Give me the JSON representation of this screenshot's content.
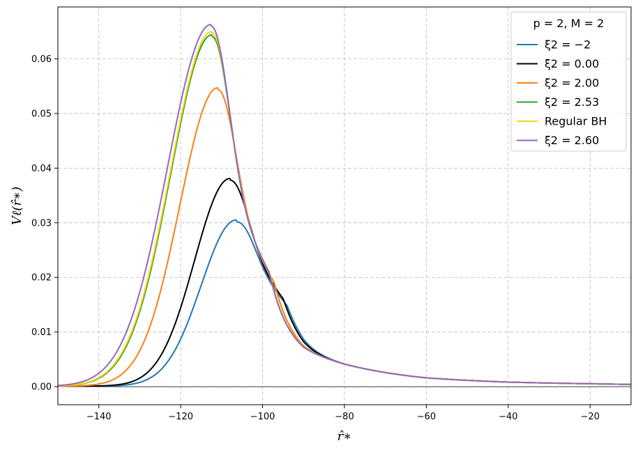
{
  "chart_data": {
    "type": "line",
    "xlabel": "r̂∗",
    "ylabel": "Vℓ(r̂∗)",
    "xlim": [
      -150,
      -10
    ],
    "ylim": [
      -0.0033,
      0.0695
    ],
    "x_ticks": [
      -140,
      -120,
      -100,
      -80,
      -60,
      -40,
      -20
    ],
    "x_tick_labels": [
      "−140",
      "−120",
      "−100",
      "−80",
      "−60",
      "−40",
      "−20"
    ],
    "y_ticks": [
      0.0,
      0.01,
      0.02,
      0.03,
      0.04,
      0.05,
      0.06
    ],
    "y_tick_labels": [
      "0.00",
      "0.01",
      "0.02",
      "0.03",
      "0.04",
      "0.05",
      "0.06"
    ],
    "grid": true,
    "horizontal_reference_line": 0.0,
    "legend": {
      "placement": "top-right",
      "title": "p = 2, M = 2"
    },
    "series": [
      {
        "name": "ξ2 = −2",
        "color": "#1f77b4",
        "peak_x": -106.5,
        "peak_y": 0.0302,
        "left_width": 8.5,
        "rise_steepness": 2.0
      },
      {
        "name": "ξ2 = 0.00",
        "color": "#000000",
        "peak_x": -108.0,
        "peak_y": 0.0378,
        "left_width": 8.6,
        "rise_steepness": 2.0
      },
      {
        "name": "ξ2 = 2.00",
        "color": "#ff7f0e",
        "peak_x": -111.0,
        "peak_y": 0.0544,
        "left_width": 9.2,
        "rise_steepness": 2.0
      },
      {
        "name": "ξ2 = 2.53",
        "color": "#2ca02c",
        "peak_x": -112.4,
        "peak_y": 0.0641,
        "left_width": 10.0,
        "rise_steepness": 2.0
      },
      {
        "name": "Regular BH",
        "color": "#f5d60a",
        "peak_x": -112.4,
        "peak_y": 0.0647,
        "left_width": 10.1,
        "rise_steepness": 2.0
      },
      {
        "name": "ξ2 = 2.60",
        "color": "#9467bd",
        "peak_x": -112.6,
        "peak_y": 0.066,
        "left_width": 10.6,
        "rise_steepness": 2.0
      }
    ],
    "tail_reference": {
      "x": [
        -100,
        -90,
        -80,
        -60,
        -40,
        -20,
        -10
      ],
      "y": [
        0.024,
        0.0115,
        0.0069,
        0.0027,
        0.0014,
        0.0009,
        0.0007
      ]
    }
  }
}
